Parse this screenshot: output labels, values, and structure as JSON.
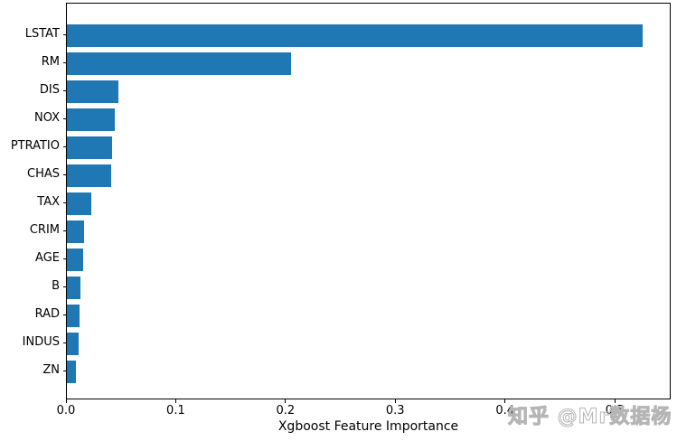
{
  "chart_data": {
    "type": "bar",
    "orientation": "horizontal",
    "title": "",
    "xlabel": "Xgboost Feature Importance",
    "ylabel": "",
    "categories": [
      "LSTAT",
      "RM",
      "DIS",
      "NOX",
      "PTRATIO",
      "CHAS",
      "TAX",
      "CRIM",
      "AGE",
      "B",
      "RAD",
      "INDUS",
      "ZN"
    ],
    "values": [
      0.525,
      0.204,
      0.047,
      0.044,
      0.041,
      0.04,
      0.022,
      0.016,
      0.015,
      0.0125,
      0.0115,
      0.0105,
      0.008
    ],
    "xlim": [
      0,
      0.551
    ],
    "xticks": [
      0,
      0.1,
      0.2,
      0.3,
      0.4,
      0.5
    ],
    "xtick_labels": [
      "0.0",
      "0.1",
      "0.2",
      "0.3",
      "0.4",
      "0.5"
    ],
    "bar_color": "#1f77b4",
    "axis_color": "#000000",
    "grid": false,
    "legend_position": "none"
  },
  "watermark": {
    "text": "知乎 @Mr数据杨",
    "color": "#b5b5b5"
  }
}
